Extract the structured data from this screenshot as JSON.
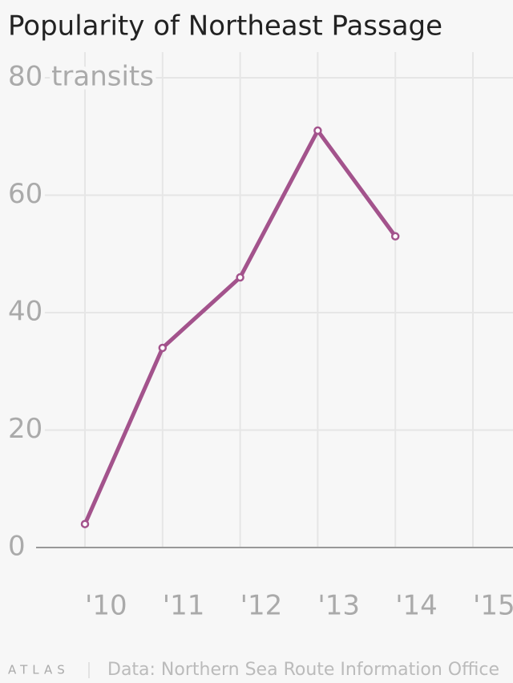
{
  "chart_data": {
    "type": "line",
    "title": "Popularity of Northeast Passage",
    "categories": [
      "'10",
      "'11",
      "'12",
      "'13",
      "'14",
      "'15"
    ],
    "series": [
      {
        "name": "Transits",
        "color": "#a3538c",
        "values": [
          4,
          34,
          46,
          71,
          53,
          null
        ]
      }
    ],
    "ylim": [
      0,
      80
    ],
    "yticks": [
      0,
      20,
      40,
      60,
      {
        "value": 80,
        "label": "80 transits"
      }
    ],
    "grid": true,
    "logo": "ATLAS",
    "source": "Data: Northern Sea Route Information Office"
  }
}
